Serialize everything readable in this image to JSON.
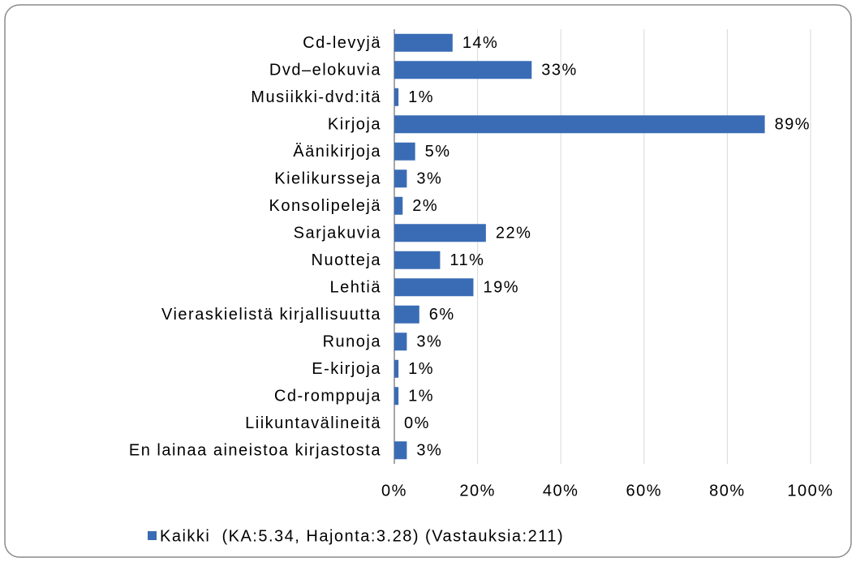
{
  "chart_data": {
    "type": "barh",
    "categories": [
      "Cd-levyjä",
      "Dvd–elokuvia",
      "Musiikki-dvd:itä",
      "Kirjoja",
      "Äänikirjoja",
      "Kielikursseja",
      "Konsolipelejä",
      "Sarjakuvia",
      "Nuotteja",
      "Lehtiä",
      "Vieraskielistä kirjallisuutta",
      "Runoja",
      "E-kirjoja",
      "Cd-romppuja",
      "Liikuntavälineitä",
      "En lainaa aineistoa kirjastosta"
    ],
    "series": [
      {
        "name": "Kaikki  (KA:5.34, Hajonta:3.28) (Vastauksia:211)",
        "color": "#3a6cb5",
        "values": [
          14,
          33,
          1,
          89,
          5,
          3,
          2,
          22,
          11,
          19,
          6,
          3,
          1,
          1,
          0,
          3
        ],
        "value_labels": [
          "14%",
          "33%",
          "1%",
          "89%",
          "5%",
          "3%",
          "2%",
          "22%",
          "11%",
          "19%",
          "6%",
          "3%",
          "1%",
          "1%",
          "0%",
          "3%"
        ]
      }
    ],
    "xlim": [
      0,
      100
    ],
    "xticks": [
      {
        "value": 0,
        "label": "0%"
      },
      {
        "value": 20,
        "label": "20%"
      },
      {
        "value": 40,
        "label": "40%"
      },
      {
        "value": 60,
        "label": "60%"
      },
      {
        "value": 80,
        "label": "80%"
      },
      {
        "value": 100,
        "label": "100%"
      }
    ],
    "grid": true,
    "legend": "bottom"
  }
}
